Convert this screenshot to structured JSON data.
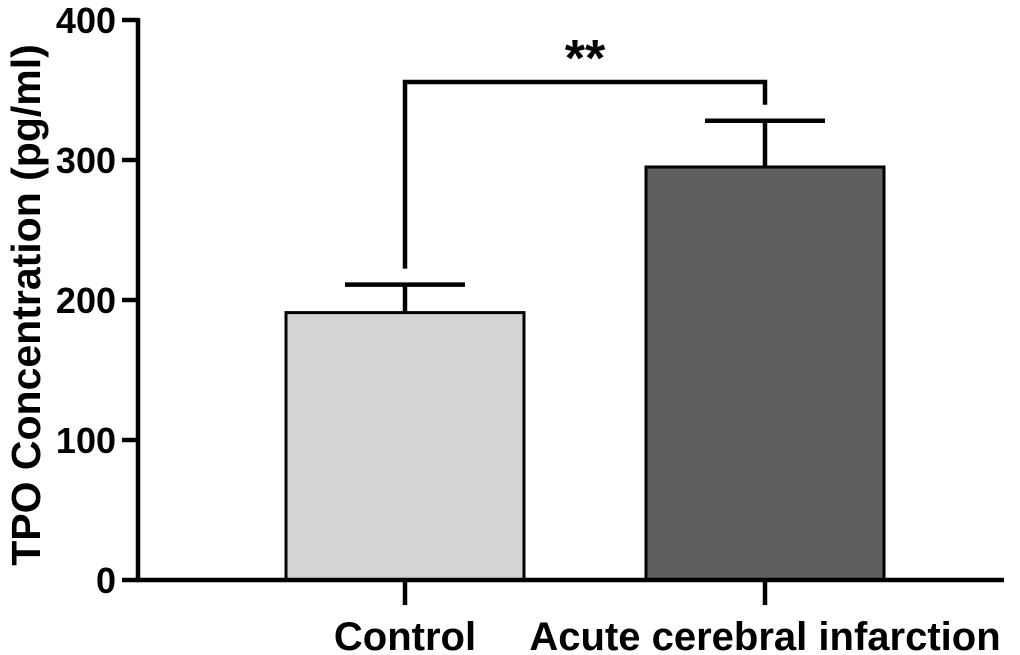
{
  "chart_data": {
    "type": "bar",
    "title": "",
    "xlabel": "",
    "ylabel": "TPO Concentration (pg/ml)",
    "ylim": [
      0,
      400
    ],
    "yticks": [
      0,
      100,
      200,
      300,
      400
    ],
    "categories": [
      "Control",
      "Acute cerebral infarction"
    ],
    "values": [
      191,
      295
    ],
    "error_bars": [
      20,
      33
    ],
    "bar_colors": [
      "#d4d4d4",
      "#5f5f5f"
    ],
    "significance": {
      "between": [
        0,
        1
      ],
      "label": "**"
    },
    "grid": false,
    "legend": "none"
  }
}
